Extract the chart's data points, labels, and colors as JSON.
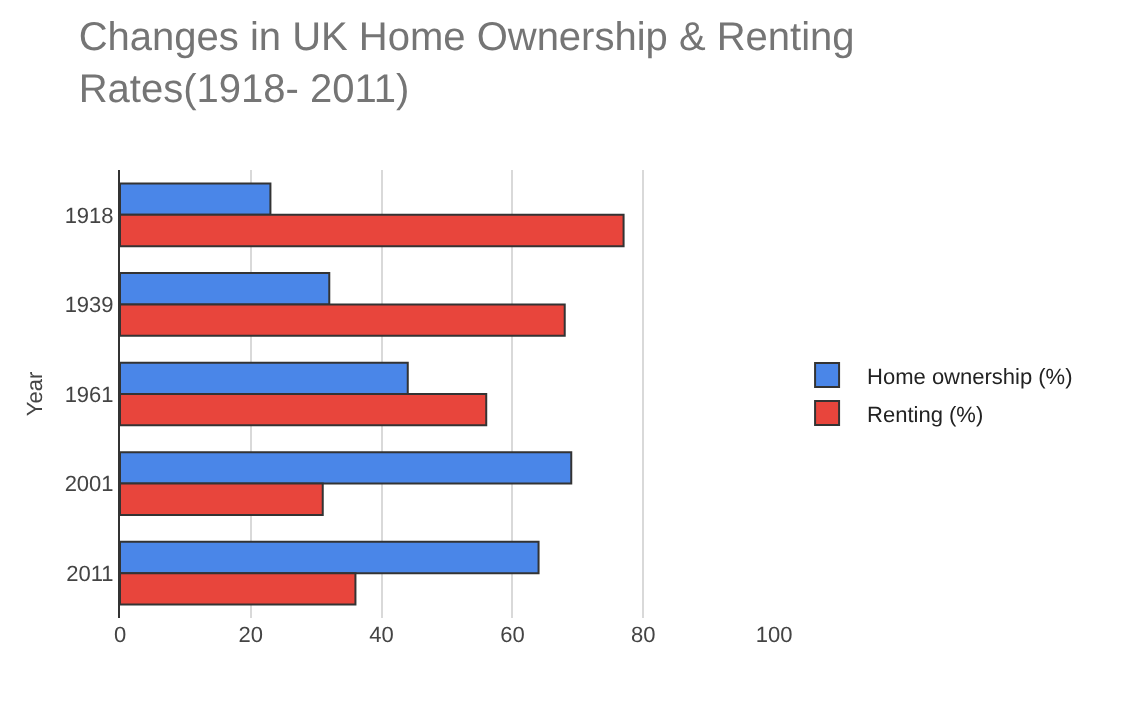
{
  "chart_data": {
    "type": "bar",
    "orientation": "horizontal",
    "title": "Changes in UK Home Ownership & Renting Rates(1918- 2011)",
    "ylabel": "Year",
    "categories": [
      "1918",
      "1939",
      "1961",
      "2001",
      "2011"
    ],
    "series": [
      {
        "name": "Home ownership (%)",
        "color": "#4a86e8",
        "values": [
          23,
          32,
          44,
          69,
          64
        ]
      },
      {
        "name": "Renting (%)",
        "color": "#e8453c",
        "values": [
          77,
          68,
          56,
          31,
          36
        ]
      }
    ],
    "xlim": [
      0,
      100
    ],
    "xticks": [
      0,
      20,
      40,
      60,
      80,
      100
    ],
    "grid": "x",
    "legend": "right"
  }
}
